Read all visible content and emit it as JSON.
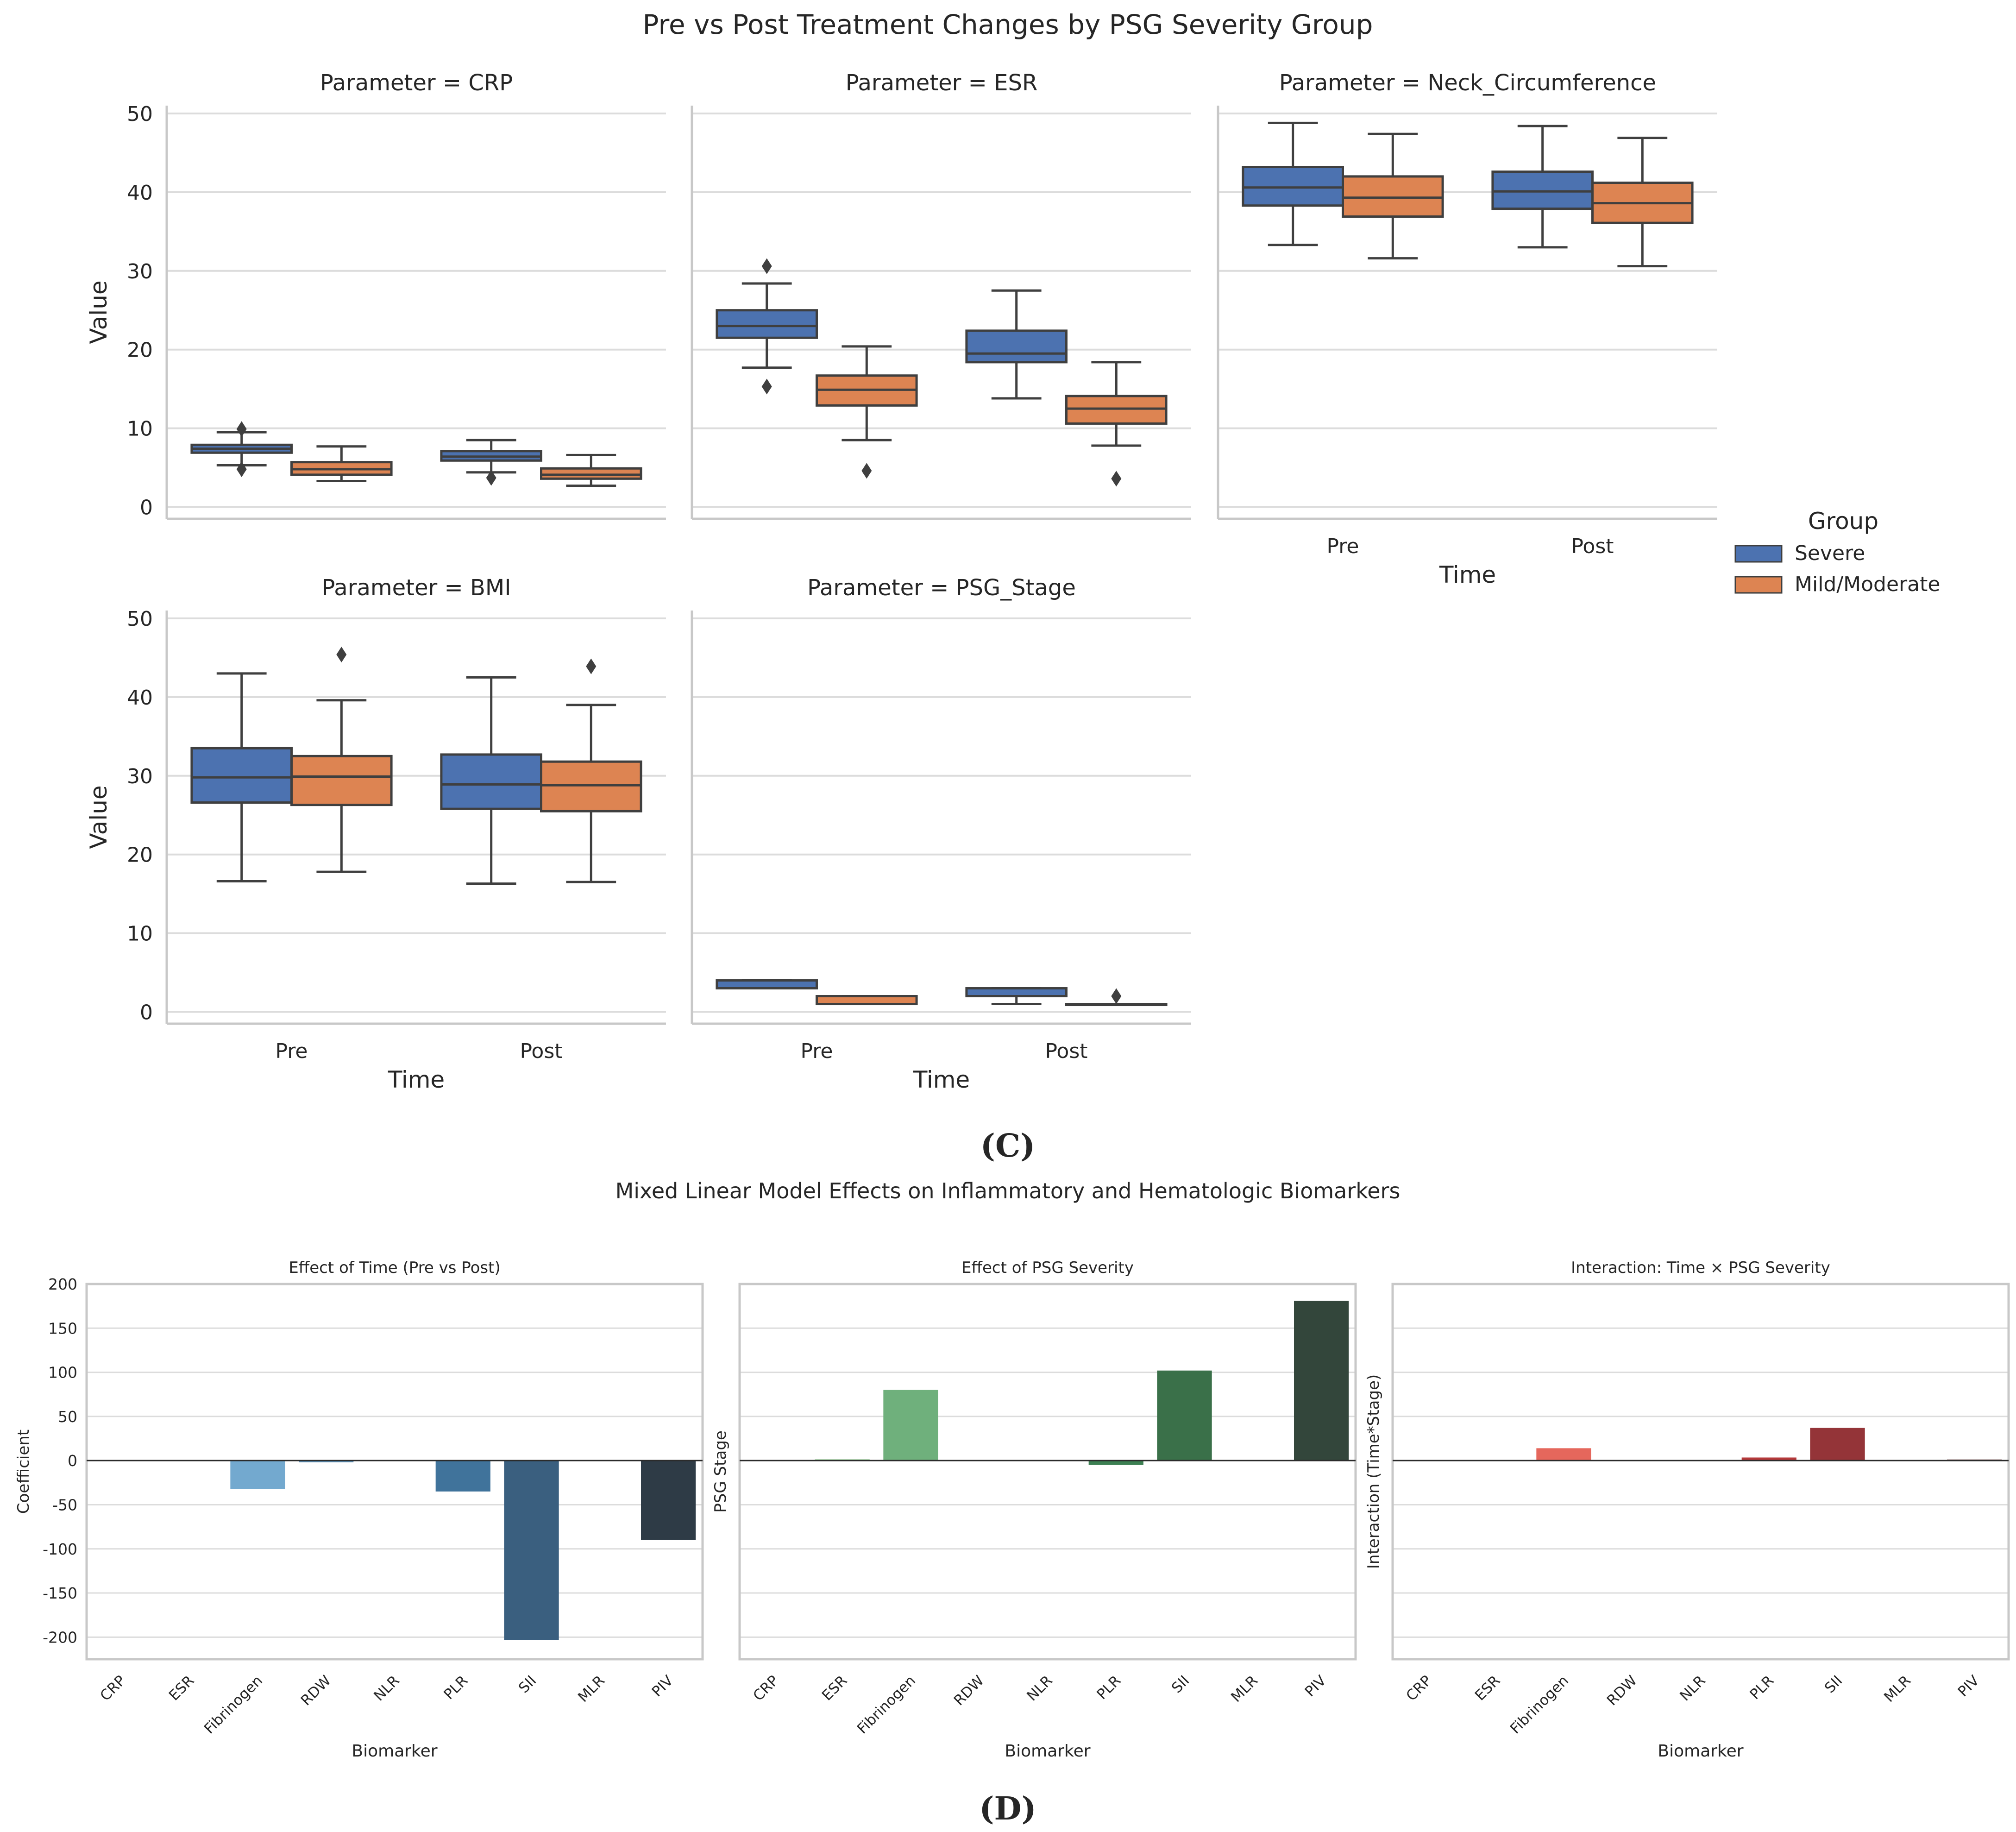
{
  "panel_labels": {
    "c": "(C)",
    "d": "(D)"
  },
  "chart_data": [
    {
      "type": "box",
      "title": "Pre vs Post Treatment Changes by PSG Severity Group",
      "xlabel": "Time",
      "ylabel": "Value",
      "ylim": [
        -1.5,
        51
      ],
      "yticks": [
        0,
        10,
        20,
        30,
        40,
        50
      ],
      "categories": [
        "Pre",
        "Post"
      ],
      "legend": {
        "title": "Group",
        "position": "right",
        "entries": [
          "Severe",
          "Mild/Moderate"
        ]
      },
      "colors": {
        "Severe": "#4c72b0",
        "Mild/Moderate": "#dd8452",
        "line": "#3f3f3f",
        "grid": "#dcdcdc",
        "spine": "#c8c8c8"
      },
      "facets": [
        {
          "title": "Parameter = CRP",
          "groups": [
            {
              "time": "Pre",
              "group": "Severe",
              "whislo": 5.3,
              "q1": 6.9,
              "med": 7.4,
              "q3": 7.9,
              "whishi": 9.5,
              "fliers": [
                4.8,
                9.9
              ]
            },
            {
              "time": "Pre",
              "group": "Mild/Moderate",
              "whislo": 3.3,
              "q1": 4.1,
              "med": 4.8,
              "q3": 5.7,
              "whishi": 7.7,
              "fliers": []
            },
            {
              "time": "Post",
              "group": "Severe",
              "whislo": 4.4,
              "q1": 5.9,
              "med": 6.4,
              "q3": 7.1,
              "whishi": 8.5,
              "fliers": [
                3.7
              ]
            },
            {
              "time": "Post",
              "group": "Mild/Moderate",
              "whislo": 2.7,
              "q1": 3.6,
              "med": 4.1,
              "q3": 4.9,
              "whishi": 6.6,
              "fliers": []
            }
          ]
        },
        {
          "title": "Parameter = ESR",
          "groups": [
            {
              "time": "Pre",
              "group": "Severe",
              "whislo": 17.7,
              "q1": 21.5,
              "med": 23.0,
              "q3": 25.0,
              "whishi": 28.4,
              "fliers": [
                15.3,
                30.6
              ]
            },
            {
              "time": "Pre",
              "group": "Mild/Moderate",
              "whislo": 8.5,
              "q1": 12.9,
              "med": 14.9,
              "q3": 16.7,
              "whishi": 20.4,
              "fliers": [
                4.6
              ]
            },
            {
              "time": "Post",
              "group": "Severe",
              "whislo": 13.8,
              "q1": 18.4,
              "med": 19.5,
              "q3": 22.4,
              "whishi": 27.5,
              "fliers": []
            },
            {
              "time": "Post",
              "group": "Mild/Moderate",
              "whislo": 7.8,
              "q1": 10.6,
              "med": 12.5,
              "q3": 14.1,
              "whishi": 18.4,
              "fliers": [
                3.6
              ]
            }
          ]
        },
        {
          "title": "Parameter = Neck_Circumference",
          "groups": [
            {
              "time": "Pre",
              "group": "Severe",
              "whislo": 33.3,
              "q1": 38.3,
              "med": 40.6,
              "q3": 43.2,
              "whishi": 48.8,
              "fliers": []
            },
            {
              "time": "Pre",
              "group": "Mild/Moderate",
              "whislo": 31.6,
              "q1": 36.9,
              "med": 39.3,
              "q3": 42.0,
              "whishi": 47.4,
              "fliers": []
            },
            {
              "time": "Post",
              "group": "Severe",
              "whislo": 33.0,
              "q1": 37.9,
              "med": 40.1,
              "q3": 42.6,
              "whishi": 48.4,
              "fliers": []
            },
            {
              "time": "Post",
              "group": "Mild/Moderate",
              "whislo": 30.6,
              "q1": 36.1,
              "med": 38.6,
              "q3": 41.2,
              "whishi": 46.9,
              "fliers": []
            }
          ]
        },
        {
          "title": "Parameter = BMI",
          "groups": [
            {
              "time": "Pre",
              "group": "Severe",
              "whislo": 16.6,
              "q1": 26.6,
              "med": 29.8,
              "q3": 33.5,
              "whishi": 43.0,
              "fliers": []
            },
            {
              "time": "Pre",
              "group": "Mild/Moderate",
              "whislo": 17.8,
              "q1": 26.3,
              "med": 29.9,
              "q3": 32.5,
              "whishi": 39.6,
              "fliers": [
                45.4
              ]
            },
            {
              "time": "Post",
              "group": "Severe",
              "whislo": 16.3,
              "q1": 25.8,
              "med": 28.9,
              "q3": 32.7,
              "whishi": 42.5,
              "fliers": []
            },
            {
              "time": "Post",
              "group": "Mild/Moderate",
              "whislo": 16.5,
              "q1": 25.5,
              "med": 28.8,
              "q3": 31.8,
              "whishi": 39.0,
              "fliers": [
                43.9
              ]
            }
          ]
        },
        {
          "title": "Parameter = PSG_Stage",
          "groups": [
            {
              "time": "Pre",
              "group": "Severe",
              "whislo": 3.0,
              "q1": 3.0,
              "med": 3.0,
              "q3": 4.0,
              "whishi": 4.0,
              "fliers": []
            },
            {
              "time": "Pre",
              "group": "Mild/Moderate",
              "whislo": 1.0,
              "q1": 1.0,
              "med": 1.0,
              "q3": 2.0,
              "whishi": 2.0,
              "fliers": []
            },
            {
              "time": "Post",
              "group": "Severe",
              "whislo": 1.0,
              "q1": 2.0,
              "med": 2.0,
              "q3": 3.0,
              "whishi": 3.0,
              "fliers": []
            },
            {
              "time": "Post",
              "group": "Mild/Moderate",
              "whislo": 1.0,
              "q1": 1.0,
              "med": 1.0,
              "q3": 1.0,
              "whishi": 1.0,
              "fliers": [
                2.0
              ]
            }
          ]
        }
      ]
    },
    {
      "type": "bar",
      "title": "Mixed Linear Model Effects on Inflammatory and Hematologic Biomarkers",
      "xlabel": "Biomarker",
      "categories": [
        "CRP",
        "ESR",
        "Fibrinogen",
        "RDW",
        "NLR",
        "PLR",
        "SII",
        "MLR",
        "PIV"
      ],
      "ylim": [
        -225,
        200
      ],
      "yticks": [
        -200,
        -150,
        -100,
        -50,
        0,
        50,
        100,
        150,
        200
      ],
      "grid_color": "#dcdcdc",
      "spine_color": "#c8c8c8",
      "panels": [
        {
          "title": "Effect of Time (Pre vs Post)",
          "ylabel": "Coefficient",
          "values": [
            0,
            0,
            -32,
            -2,
            0,
            -35,
            -203,
            0,
            -90
          ],
          "colors": [
            "#d0e1f2",
            "#b7d4ea",
            "#73a9cf",
            "#5b8fb7",
            "#4c84ad",
            "#40739b",
            "#3a5f7f",
            "#34495e",
            "#2e3b46"
          ]
        },
        {
          "title": "Effect of PSG Severity",
          "ylabel": "PSG Stage",
          "values": [
            0,
            1.5,
            80,
            0,
            0,
            -5,
            102,
            0,
            181
          ],
          "colors": [
            "#b0dcb0",
            "#9ccf9c",
            "#6fb07c",
            "#5aa06c",
            "#4a9060",
            "#3c7f52",
            "#3a7049",
            "#365e41",
            "#33463b"
          ]
        },
        {
          "title": "Interaction: Time × PSG Severity",
          "ylabel": "Interaction (Time*Stage)",
          "values": [
            0,
            0,
            14,
            0,
            0,
            3.5,
            37,
            0,
            1.2
          ],
          "colors": [
            "#f7b6a0",
            "#f59a86",
            "#e5675c",
            "#d35450",
            "#c4443f",
            "#b5393a",
            "#943438",
            "#773233",
            "#5a2c2c"
          ]
        }
      ]
    }
  ]
}
